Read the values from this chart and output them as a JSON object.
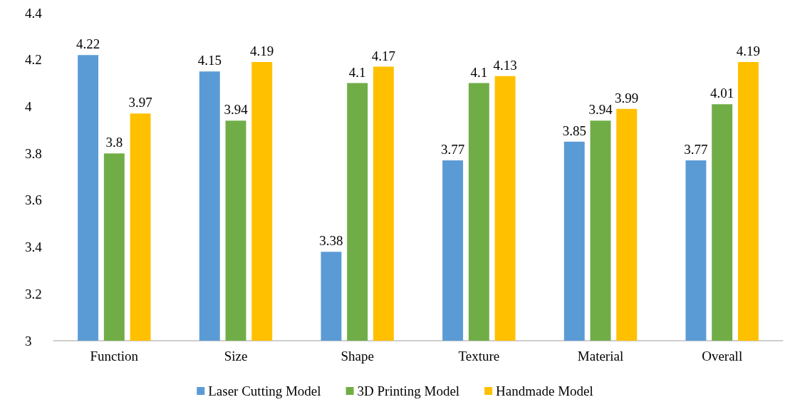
{
  "chart_data": {
    "type": "bar",
    "categories": [
      "Function",
      "Size",
      "Shape",
      "Texture",
      "Material",
      "Overall"
    ],
    "series": [
      {
        "name": "Laser Cutting Model",
        "color": "#5b9bd5",
        "values": [
          4.22,
          4.15,
          3.38,
          3.77,
          3.85,
          3.77
        ]
      },
      {
        "name": "3D Printing Model",
        "color": "#70ad47",
        "values": [
          3.8,
          3.94,
          4.1,
          4.1,
          3.94,
          4.01
        ]
      },
      {
        "name": "Handmade Model",
        "color": "#ffc000",
        "values": [
          3.97,
          4.19,
          4.17,
          4.13,
          3.99,
          4.19
        ]
      }
    ],
    "ylim": [
      3,
      4.4
    ],
    "yticks": [
      3,
      3.2,
      3.4,
      3.6,
      3.8,
      4,
      4.2,
      4.4
    ],
    "grid": false,
    "legend": "bottom",
    "data_labels": true
  }
}
